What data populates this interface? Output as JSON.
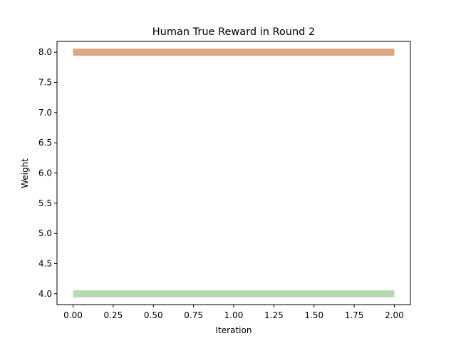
{
  "chart_data": {
    "type": "line",
    "title": "Human True Reward in Round 2",
    "xlabel": "Iteration",
    "ylabel": "Weight",
    "xlim": [
      -0.1,
      2.1
    ],
    "ylim": [
      3.82,
      8.18
    ],
    "xticks": [
      0.0,
      0.25,
      0.5,
      0.75,
      1.0,
      1.25,
      1.5,
      1.75,
      2.0
    ],
    "xtick_labels": [
      "0.00",
      "0.25",
      "0.50",
      "0.75",
      "1.00",
      "1.25",
      "1.50",
      "1.75",
      "2.00"
    ],
    "yticks": [
      4.0,
      4.5,
      5.0,
      5.5,
      6.0,
      6.5,
      7.0,
      7.5,
      8.0
    ],
    "ytick_labels": [
      "4.0",
      "4.5",
      "5.0",
      "5.5",
      "6.0",
      "6.5",
      "7.0",
      "7.5",
      "8.0"
    ],
    "grid": false,
    "legend": false,
    "series": [
      {
        "x": [
          0,
          1,
          2
        ],
        "values": [
          8.0,
          8.0,
          8.0
        ],
        "color": "#dba682"
      },
      {
        "x": [
          0,
          1,
          2
        ],
        "values": [
          4.0,
          4.0,
          4.0
        ],
        "color": "#b5d9b3"
      }
    ]
  }
}
